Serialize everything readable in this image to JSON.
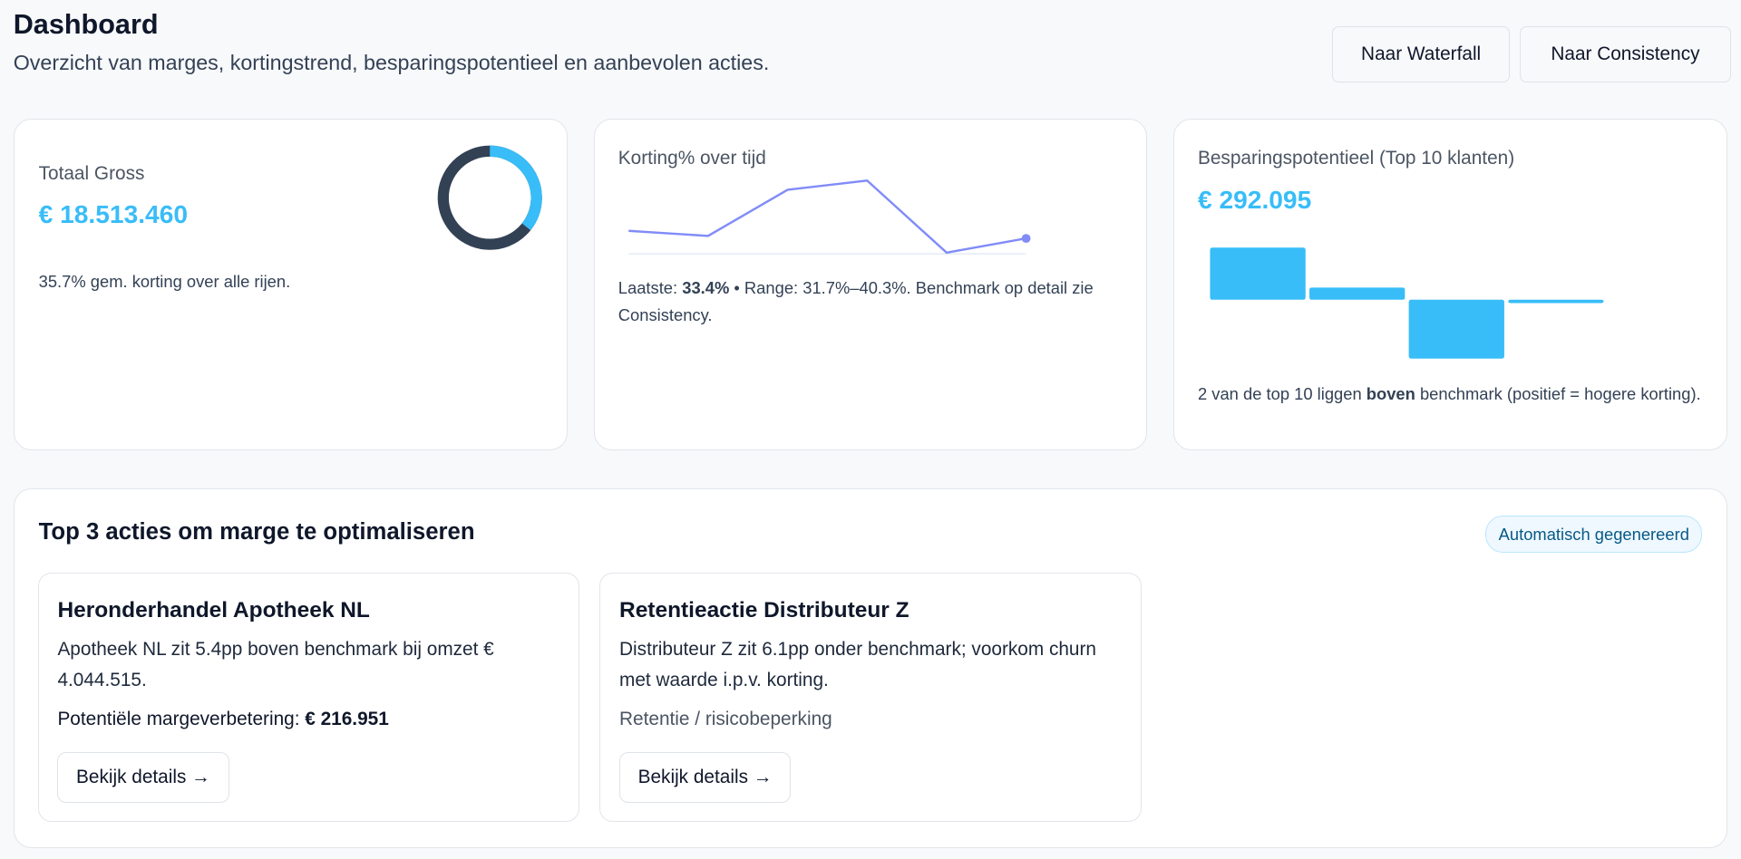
{
  "header": {
    "title": "Dashboard",
    "subtitle": "Overzicht van marges, kortingstrend, besparingspotentieel en aanbevolen acties.",
    "buttons": [
      "Naar Waterfall",
      "Naar Consistency"
    ]
  },
  "kpi_gross": {
    "label": "Totaal Gross",
    "value": "€ 18.513.460",
    "note": "35.7% gem. korting over alle rijen.",
    "donut_fraction": 0.357,
    "colors": {
      "arc": "#38bdf8",
      "track": "#334155"
    }
  },
  "kpi_korting": {
    "label": "Korting% over tijd",
    "note_prefix": "Laatste: ",
    "latest": "33.4%",
    "note_suffix": " • Range: 31.7%–40.3%. Benchmark op detail zie Consistency.",
    "line_color": "#818cf8"
  },
  "kpi_besparing": {
    "label": "Besparingspotentieel (Top 10 klanten)",
    "value": "€ 292.095",
    "note_prefix": "2 van de top 10 liggen ",
    "note_bold": "boven",
    "note_suffix": " benchmark (positief = hogere korting).",
    "bar_color": "#38bdf8"
  },
  "chart_data": [
    {
      "type": "line",
      "title": "Korting% over tijd",
      "values": [
        34.3,
        33.7,
        39.2,
        40.3,
        31.7,
        33.4
      ],
      "ylim": [
        31.7,
        40.3
      ]
    },
    {
      "type": "bar",
      "title": "Besparingspotentieel (Top 10 klanten)",
      "values": [
        47,
        11,
        -53,
        -3
      ]
    }
  ],
  "actions": {
    "title": "Top 3 acties om marge te optimaliseren",
    "badge": "Automatisch gegenereerd",
    "items": [
      {
        "title": "Heronderhandel Apotheek NL",
        "desc": "Apotheek NL zit 5.4pp boven benchmark bij omzet € 4.044.515.",
        "extra_prefix": "Potentiële margeverbetering: ",
        "extra_bold": "€ 216.951",
        "button": "Bekijk details →"
      },
      {
        "title": "Retentieactie Distributeur Z",
        "desc": "Distributeur Z zit 6.1pp onder benchmark; voorkom churn met waarde i.p.v. korting.",
        "extra_prefix": "Retentie / risicobeperking",
        "extra_bold": "",
        "button": "Bekijk details →"
      }
    ]
  }
}
